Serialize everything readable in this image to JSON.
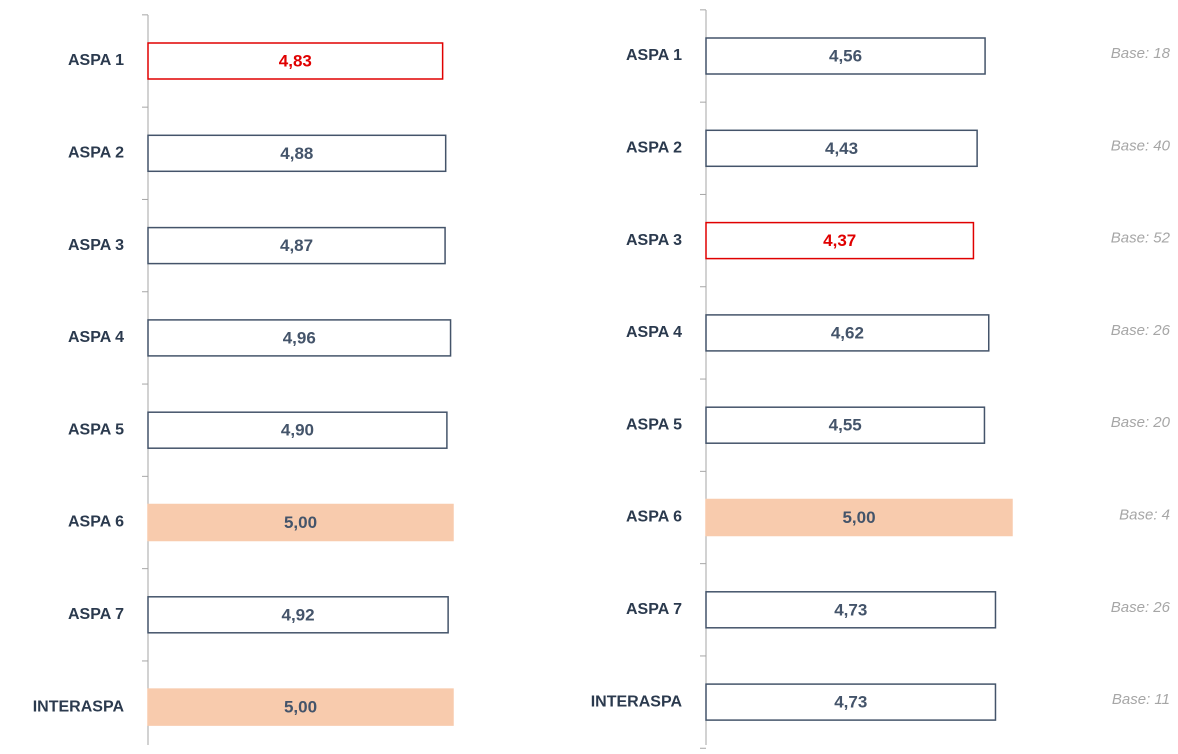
{
  "chart_data": [
    {
      "type": "barh",
      "categories": [
        "ASPA 1",
        "ASPA 2",
        "ASPA 3",
        "ASPA 4",
        "ASPA 5",
        "ASPA 6",
        "ASPA 7",
        "INTERASPA"
      ],
      "values": [
        4.83,
        4.88,
        4.87,
        4.96,
        4.9,
        5.0,
        4.92,
        5.0
      ],
      "value_labels": [
        "4,83",
        "4,88",
        "4,87",
        "4,96",
        "4,90",
        "5,00",
        "4,92",
        "5,00"
      ],
      "colors": [
        "#ffffff",
        "#ffffff",
        "#ffffff",
        "#ffffff",
        "#ffffff",
        "#f8cbad",
        "#ffffff",
        "#f8cbad"
      ],
      "edgecolors": [
        "#e00000",
        "#44546a",
        "#44546a",
        "#44546a",
        "#44546a",
        "#f8cbad",
        "#44546a",
        "#f8cbad"
      ],
      "label_colors": [
        "#e00000",
        "#44546a",
        "#44546a",
        "#44546a",
        "#44546a",
        "#44546a",
        "#44546a",
        "#44546a"
      ],
      "xlim": [
        0,
        5
      ]
    },
    {
      "type": "barh",
      "categories": [
        "ASPA 1",
        "ASPA 2",
        "ASPA 3",
        "ASPA 4",
        "ASPA 5",
        "ASPA 6",
        "ASPA 7",
        "INTERASPA"
      ],
      "values": [
        4.56,
        4.43,
        4.37,
        4.62,
        4.55,
        5.0,
        4.73,
        4.73
      ],
      "value_labels": [
        "4,56",
        "4,43",
        "4,37",
        "4,62",
        "4,55",
        "5,00",
        "4,73",
        "4,73"
      ],
      "colors": [
        "#ffffff",
        "#ffffff",
        "#ffffff",
        "#ffffff",
        "#ffffff",
        "#f8cbad",
        "#ffffff",
        "#ffffff"
      ],
      "edgecolors": [
        "#44546a",
        "#44546a",
        "#e00000",
        "#44546a",
        "#44546a",
        "#f8cbad",
        "#44546a",
        "#44546a"
      ],
      "label_colors": [
        "#44546a",
        "#44546a",
        "#e00000",
        "#44546a",
        "#44546a",
        "#44546a",
        "#44546a",
        "#44546a"
      ],
      "xlim": [
        0,
        5
      ],
      "annotations": [
        "Base: 18",
        "Base: 40",
        "Base: 52",
        "Base: 26",
        "Base: 20",
        "Base: 4",
        "Base: 26",
        "Base: 11"
      ]
    }
  ]
}
